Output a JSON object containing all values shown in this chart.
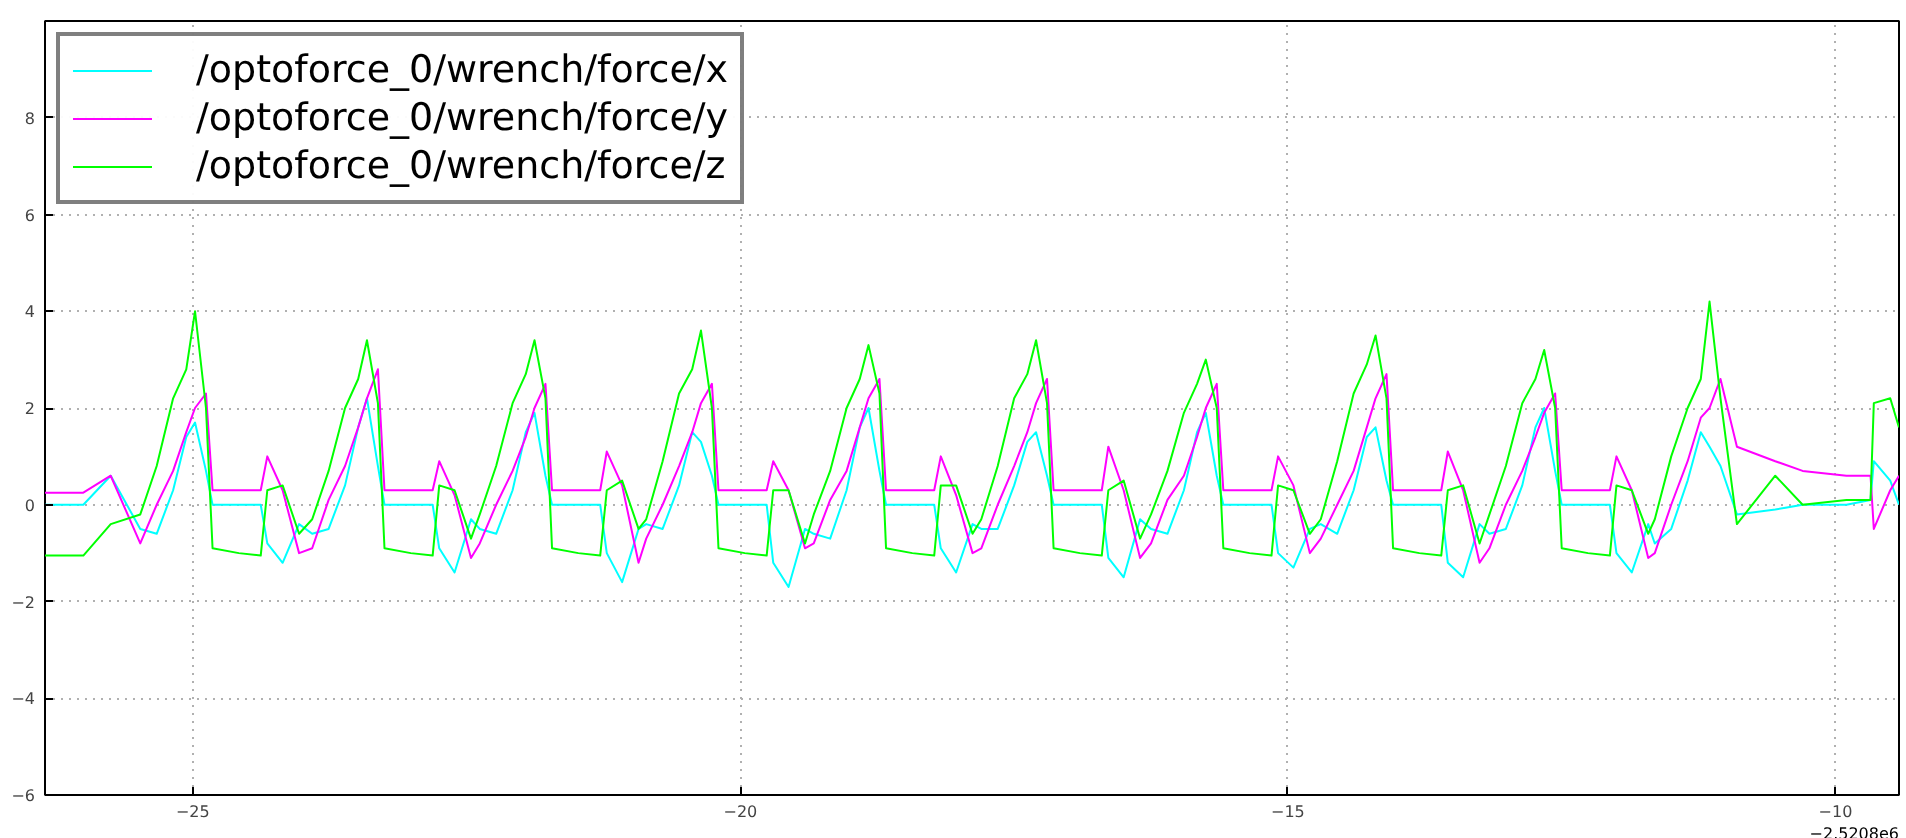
{
  "chart_data": {
    "type": "line",
    "xlim": [
      -26.35,
      -9.42
    ],
    "ylim": [
      -6,
      10
    ],
    "xticks": [
      {
        "value": -25,
        "label": "−25"
      },
      {
        "value": -20,
        "label": "−20"
      },
      {
        "value": -15,
        "label": "−15"
      },
      {
        "value": -10,
        "label": "−10"
      }
    ],
    "yticks": [
      {
        "value": -6,
        "label": "−6"
      },
      {
        "value": -4,
        "label": "−4"
      },
      {
        "value": -2,
        "label": "−2"
      },
      0,
      2,
      4,
      6,
      8
    ],
    "grid": true,
    "legend": "top left",
    "line_style": "solid",
    "marker": "none",
    "annotations": [
      "−2.5208e6"
    ],
    "x": [
      -26.35,
      -26.0,
      -25.75,
      -25.48,
      -25.33,
      -25.18,
      -25.06,
      -24.98,
      -24.88,
      -24.82,
      -24.58,
      -24.38,
      -24.32,
      -24.18,
      -24.03,
      -23.91,
      -23.76,
      -23.61,
      -23.49,
      -23.41,
      -23.31,
      -23.25,
      -23.01,
      -22.81,
      -22.75,
      -22.61,
      -22.46,
      -22.38,
      -22.23,
      -22.08,
      -21.96,
      -21.88,
      -21.78,
      -21.72,
      -21.48,
      -21.28,
      -21.22,
      -21.08,
      -20.93,
      -20.86,
      -20.71,
      -20.56,
      -20.44,
      -20.36,
      -20.26,
      -20.2,
      -19.96,
      -19.76,
      -19.7,
      -19.56,
      -19.41,
      -19.33,
      -19.18,
      -19.03,
      -18.91,
      -18.83,
      -18.73,
      -18.67,
      -18.43,
      -18.23,
      -18.17,
      -18.03,
      -17.88,
      -17.8,
      -17.65,
      -17.5,
      -17.38,
      -17.3,
      -17.2,
      -17.14,
      -16.9,
      -16.7,
      -16.64,
      -16.5,
      -16.35,
      -16.25,
      -16.1,
      -15.95,
      -15.83,
      -15.75,
      -15.65,
      -15.59,
      -15.35,
      -15.15,
      -15.09,
      -14.95,
      -14.8,
      -14.7,
      -14.55,
      -14.4,
      -14.28,
      -14.2,
      -14.1,
      -14.04,
      -13.8,
      -13.6,
      -13.54,
      -13.4,
      -13.25,
      -13.16,
      -13.01,
      -12.86,
      -12.74,
      -12.66,
      -12.56,
      -12.5,
      -12.26,
      -12.06,
      -12.0,
      -11.86,
      -11.71,
      -11.65,
      -11.5,
      -11.35,
      -11.23,
      -11.15,
      -11.05,
      -10.9,
      -10.55,
      -10.3,
      -9.9,
      -9.68,
      -9.65,
      -9.5,
      -9.42
    ],
    "series": [
      {
        "name": "/optoforce_0/wrench/force/x",
        "color": "#00ffff",
        "values": [
          0.0,
          0.0,
          0.6,
          -0.5,
          -0.6,
          0.3,
          1.4,
          1.7,
          0.7,
          0.0,
          0.0,
          0.0,
          -0.8,
          -1.2,
          -0.4,
          -0.6,
          -0.5,
          0.4,
          1.6,
          2.2,
          0.8,
          0.0,
          0.0,
          0.0,
          -0.9,
          -1.4,
          -0.3,
          -0.5,
          -0.6,
          0.3,
          1.5,
          1.9,
          0.6,
          0.0,
          0.0,
          0.0,
          -1.0,
          -1.6,
          -0.5,
          -0.4,
          -0.5,
          0.4,
          1.5,
          1.3,
          0.6,
          0.0,
          0.0,
          0.0,
          -1.2,
          -1.7,
          -0.5,
          -0.6,
          -0.7,
          0.3,
          1.6,
          2.0,
          0.7,
          0.0,
          0.0,
          0.0,
          -0.9,
          -1.4,
          -0.4,
          -0.5,
          -0.5,
          0.4,
          1.3,
          1.5,
          0.6,
          0.0,
          0.0,
          0.0,
          -1.1,
          -1.5,
          -0.3,
          -0.5,
          -0.6,
          0.3,
          1.5,
          1.9,
          0.6,
          0.0,
          0.0,
          0.0,
          -1.0,
          -1.3,
          -0.5,
          -0.4,
          -0.6,
          0.3,
          1.4,
          1.6,
          0.5,
          0.0,
          0.0,
          0.0,
          -1.2,
          -1.5,
          -0.4,
          -0.6,
          -0.5,
          0.4,
          1.6,
          2.0,
          0.7,
          0.0,
          0.0,
          0.0,
          -1.0,
          -1.4,
          -0.4,
          -0.8,
          -0.5,
          0.5,
          1.5,
          1.2,
          0.8,
          -0.2,
          -0.1,
          0.0,
          0.0,
          0.1,
          0.9,
          0.5,
          0.0
        ]
      },
      {
        "name": "/optoforce_0/wrench/force/y",
        "color": "#ff00ff",
        "values": [
          0.25,
          0.25,
          0.6,
          -0.8,
          0.0,
          0.7,
          1.5,
          2.0,
          2.3,
          0.3,
          0.3,
          0.3,
          1.0,
          0.3,
          -1.0,
          -0.9,
          0.1,
          0.8,
          1.6,
          2.2,
          2.8,
          0.3,
          0.3,
          0.3,
          0.9,
          0.2,
          -1.1,
          -0.8,
          0.0,
          0.7,
          1.4,
          2.0,
          2.5,
          0.3,
          0.3,
          0.3,
          1.1,
          0.4,
          -1.2,
          -0.7,
          0.0,
          0.8,
          1.5,
          2.1,
          2.5,
          0.3,
          0.3,
          0.3,
          0.9,
          0.3,
          -0.9,
          -0.8,
          0.1,
          0.7,
          1.6,
          2.2,
          2.6,
          0.3,
          0.3,
          0.3,
          1.0,
          0.2,
          -1.0,
          -0.9,
          0.0,
          0.8,
          1.5,
          2.1,
          2.6,
          0.3,
          0.3,
          0.3,
          1.2,
          0.3,
          -1.1,
          -0.8,
          0.1,
          0.6,
          1.4,
          2.0,
          2.5,
          0.3,
          0.3,
          0.3,
          1.0,
          0.4,
          -1.0,
          -0.7,
          0.0,
          0.7,
          1.6,
          2.2,
          2.7,
          0.3,
          0.3,
          0.3,
          1.1,
          0.3,
          -1.2,
          -0.9,
          0.0,
          0.7,
          1.4,
          1.9,
          2.3,
          0.3,
          0.3,
          0.3,
          1.0,
          0.3,
          -1.1,
          -1.0,
          0.0,
          0.9,
          1.8,
          2.0,
          2.6,
          1.2,
          0.9,
          0.7,
          0.6,
          0.6,
          -0.5,
          0.3,
          0.6
        ]
      },
      {
        "name": "/optoforce_0/wrench/force/z",
        "color": "#00ff00",
        "values": [
          -1.05,
          -1.05,
          -0.4,
          -0.2,
          0.8,
          2.2,
          2.8,
          4.0,
          2.0,
          -0.9,
          -1.0,
          -1.05,
          0.3,
          0.4,
          -0.6,
          -0.3,
          0.7,
          2.0,
          2.6,
          3.4,
          2.1,
          -0.9,
          -1.0,
          -1.05,
          0.4,
          0.3,
          -0.7,
          -0.2,
          0.8,
          2.1,
          2.7,
          3.4,
          2.2,
          -0.9,
          -1.0,
          -1.05,
          0.3,
          0.5,
          -0.5,
          -0.3,
          0.9,
          2.3,
          2.8,
          3.6,
          2.0,
          -0.9,
          -1.0,
          -1.05,
          0.3,
          0.3,
          -0.8,
          -0.2,
          0.7,
          2.0,
          2.6,
          3.3,
          2.3,
          -0.9,
          -1.0,
          -1.05,
          0.4,
          0.4,
          -0.6,
          -0.3,
          0.8,
          2.2,
          2.7,
          3.4,
          2.1,
          -0.9,
          -1.0,
          -1.05,
          0.3,
          0.5,
          -0.7,
          -0.2,
          0.7,
          1.9,
          2.5,
          3.0,
          2.0,
          -0.9,
          -1.0,
          -1.05,
          0.4,
          0.3,
          -0.6,
          -0.3,
          0.9,
          2.3,
          2.9,
          3.5,
          2.2,
          -0.9,
          -1.0,
          -1.05,
          0.3,
          0.4,
          -0.8,
          -0.2,
          0.8,
          2.1,
          2.6,
          3.2,
          2.0,
          -0.9,
          -1.0,
          -1.05,
          0.4,
          0.3,
          -0.6,
          -0.3,
          1.0,
          2.0,
          2.6,
          4.2,
          2.2,
          -0.4,
          0.6,
          0.0,
          0.1,
          0.1,
          2.1,
          2.2,
          1.6
        ]
      }
    ]
  }
}
